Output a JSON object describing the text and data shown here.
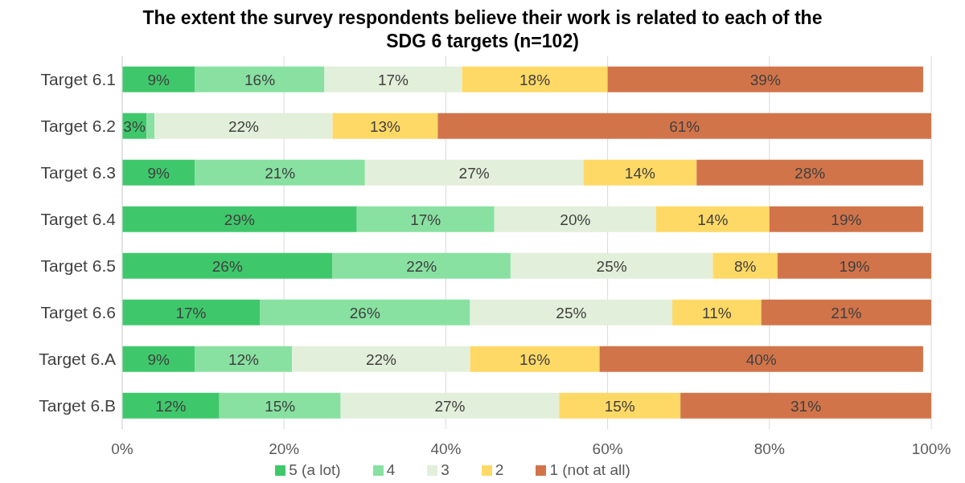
{
  "chart_data": {
    "type": "bar",
    "orientation": "horizontal",
    "stacked": true,
    "title": "The extent the survey respondents believe their work is related to each of the SDG 6 targets (n=102)",
    "categories": [
      "Target 6.1",
      "Target 6.2",
      "Target 6.3",
      "Target 6.4",
      "Target 6.5",
      "Target 6.6",
      "Target 6.A",
      "Target 6.B"
    ],
    "series": [
      {
        "name": "5 (a lot)",
        "color": "#3fc86b",
        "values": [
          9,
          3,
          9,
          29,
          26,
          17,
          9,
          12
        ],
        "value_labels": [
          "9%",
          "3%",
          "9%",
          "29%",
          "26%",
          "17%",
          "9%",
          "12%"
        ]
      },
      {
        "name": "4",
        "color": "#88e1a1",
        "values": [
          16,
          1,
          21,
          17,
          22,
          26,
          12,
          15
        ],
        "value_labels": [
          "16%",
          null,
          "21%",
          "17%",
          "22%",
          "26%",
          "12%",
          "15%"
        ]
      },
      {
        "name": "3",
        "color": "#e2efda",
        "values": [
          17,
          22,
          27,
          20,
          25,
          25,
          22,
          27
        ],
        "value_labels": [
          "17%",
          "22%",
          "27%",
          "20%",
          "25%",
          "25%",
          "22%",
          "27%"
        ]
      },
      {
        "name": "2",
        "color": "#ffd966",
        "values": [
          18,
          13,
          14,
          14,
          8,
          11,
          16,
          15
        ],
        "value_labels": [
          "18%",
          "13%",
          "14%",
          "14%",
          "8%",
          "11%",
          "16%",
          "15%"
        ]
      },
      {
        "name": "1 (not at all)",
        "color": "#d2744a",
        "values": [
          39,
          61,
          28,
          19,
          19,
          21,
          40,
          31
        ],
        "value_labels": [
          "39%",
          "61%",
          "28%",
          "19%",
          "19%",
          "21%",
          "40%",
          "31%"
        ]
      }
    ],
    "xlim": [
      0,
      100
    ],
    "xticks": [
      {
        "value": 0,
        "label": "0%"
      },
      {
        "value": 20,
        "label": "20%"
      },
      {
        "value": 40,
        "label": "40%"
      },
      {
        "value": 60,
        "label": "60%"
      },
      {
        "value": 80,
        "label": "80%"
      },
      {
        "value": 100,
        "label": "100%"
      }
    ],
    "grid": "x",
    "legend": "bottom"
  }
}
